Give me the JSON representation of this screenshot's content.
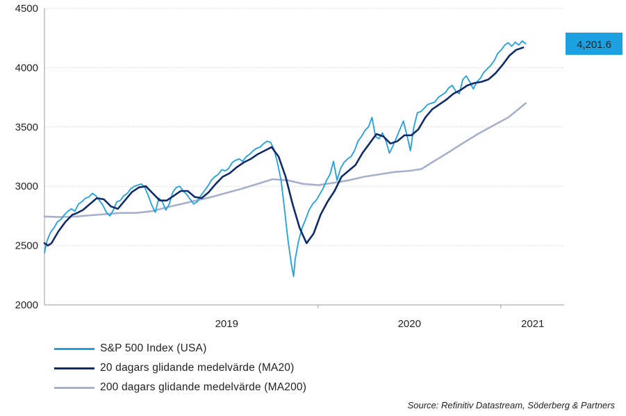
{
  "chart_data": {
    "type": "line",
    "title": "",
    "xlabel": "",
    "ylabel": "",
    "ylim": [
      2000,
      4500
    ],
    "yticks": [
      2000,
      2500,
      3000,
      3500,
      4000,
      4500
    ],
    "xlim": [
      "2018-07-01",
      "2021-05-07"
    ],
    "x_labels": [
      {
        "label": "2019",
        "at": "2019-07-01"
      },
      {
        "label": "2020",
        "at": "2020-07-01"
      },
      {
        "label": "2021",
        "at": "2021-03-05"
      }
    ],
    "x_tick_dates": [
      "2019-12-31",
      "2020-12-31"
    ],
    "grid": "horizontal-dotted",
    "legend_position": "bottom-left",
    "last_value_label": "4,201.6",
    "colors": {
      "sp500": "#1ba1e2",
      "ma20": "#0d2a6b",
      "ma200": "#a5b0cc",
      "badge": "#1ba1e2",
      "grid": "#c8c8c8",
      "axis": "#9a9a9a"
    },
    "series": [
      {
        "name": "S&P 500 Index (USA)",
        "key": "sp500",
        "points": [
          [
            "2018-07-01",
            2440
          ],
          [
            "2018-07-06",
            2540
          ],
          [
            "2018-07-13",
            2610
          ],
          [
            "2018-07-20",
            2650
          ],
          [
            "2018-07-27",
            2700
          ],
          [
            "2018-08-03",
            2720
          ],
          [
            "2018-08-10",
            2760
          ],
          [
            "2018-08-17",
            2790
          ],
          [
            "2018-08-24",
            2810
          ],
          [
            "2018-08-31",
            2790
          ],
          [
            "2018-09-07",
            2850
          ],
          [
            "2018-09-14",
            2870
          ],
          [
            "2018-09-21",
            2900
          ],
          [
            "2018-09-28",
            2910
          ],
          [
            "2018-10-05",
            2940
          ],
          [
            "2018-10-12",
            2920
          ],
          [
            "2018-10-19",
            2880
          ],
          [
            "2018-10-26",
            2840
          ],
          [
            "2018-11-02",
            2780
          ],
          [
            "2018-11-09",
            2750
          ],
          [
            "2018-11-16",
            2800
          ],
          [
            "2018-11-23",
            2870
          ],
          [
            "2018-11-30",
            2880
          ],
          [
            "2018-12-07",
            2920
          ],
          [
            "2018-12-14",
            2940
          ],
          [
            "2018-12-21",
            2980
          ],
          [
            "2018-12-28",
            3000
          ],
          [
            "2019-01-04",
            3010
          ],
          [
            "2019-01-11",
            3020
          ],
          [
            "2019-01-18",
            2990
          ],
          [
            "2019-01-25",
            2920
          ],
          [
            "2019-02-01",
            2840
          ],
          [
            "2019-02-08",
            2780
          ],
          [
            "2019-02-15",
            2900
          ],
          [
            "2019-02-22",
            2870
          ],
          [
            "2019-03-01",
            2800
          ],
          [
            "2019-03-08",
            2850
          ],
          [
            "2019-03-15",
            2950
          ],
          [
            "2019-03-22",
            2990
          ],
          [
            "2019-03-29",
            3000
          ],
          [
            "2019-04-05",
            2960
          ],
          [
            "2019-04-12",
            2930
          ],
          [
            "2019-04-19",
            2890
          ],
          [
            "2019-04-26",
            2850
          ],
          [
            "2019-05-03",
            2870
          ],
          [
            "2019-05-10",
            2920
          ],
          [
            "2019-05-17",
            2960
          ],
          [
            "2019-05-24",
            3000
          ],
          [
            "2019-05-31",
            3050
          ],
          [
            "2019-06-07",
            3080
          ],
          [
            "2019-06-14",
            3100
          ],
          [
            "2019-06-21",
            3140
          ],
          [
            "2019-06-28",
            3130
          ],
          [
            "2019-07-05",
            3150
          ],
          [
            "2019-07-12",
            3200
          ],
          [
            "2019-07-19",
            3220
          ],
          [
            "2019-07-26",
            3230
          ],
          [
            "2019-08-02",
            3210
          ],
          [
            "2019-08-09",
            3250
          ],
          [
            "2019-08-16",
            3270
          ],
          [
            "2019-08-23",
            3300
          ],
          [
            "2019-08-30",
            3320
          ],
          [
            "2019-09-06",
            3330
          ],
          [
            "2019-09-13",
            3360
          ],
          [
            "2019-09-20",
            3380
          ],
          [
            "2019-09-27",
            3370
          ],
          [
            "2019-10-04",
            3310
          ],
          [
            "2019-10-11",
            3190
          ],
          [
            "2019-10-18",
            3050
          ],
          [
            "2019-10-25",
            2800
          ],
          [
            "2019-11-01",
            2540
          ],
          [
            "2019-11-08",
            2330
          ],
          [
            "2019-11-12",
            2240
          ],
          [
            "2019-11-15",
            2380
          ],
          [
            "2019-11-22",
            2540
          ],
          [
            "2019-11-29",
            2650
          ],
          [
            "2019-12-06",
            2720
          ],
          [
            "2019-12-13",
            2800
          ],
          [
            "2019-12-20",
            2850
          ],
          [
            "2019-12-27",
            2880
          ],
          [
            "2020-01-03",
            2930
          ],
          [
            "2020-01-10",
            2980
          ],
          [
            "2020-01-17",
            3050
          ],
          [
            "2020-01-24",
            3100
          ],
          [
            "2020-01-31",
            3210
          ],
          [
            "2020-02-07",
            3050
          ],
          [
            "2020-02-14",
            3150
          ],
          [
            "2020-02-21",
            3200
          ],
          [
            "2020-02-28",
            3230
          ],
          [
            "2020-03-06",
            3250
          ],
          [
            "2020-03-13",
            3300
          ],
          [
            "2020-03-20",
            3380
          ],
          [
            "2020-03-27",
            3420
          ],
          [
            "2020-04-03",
            3470
          ],
          [
            "2020-04-10",
            3500
          ],
          [
            "2020-04-17",
            3580
          ],
          [
            "2020-04-24",
            3420
          ],
          [
            "2020-05-01",
            3400
          ],
          [
            "2020-05-08",
            3450
          ],
          [
            "2020-05-15",
            3380
          ],
          [
            "2020-05-22",
            3280
          ],
          [
            "2020-05-29",
            3340
          ],
          [
            "2020-06-05",
            3410
          ],
          [
            "2020-06-12",
            3480
          ],
          [
            "2020-06-19",
            3550
          ],
          [
            "2020-06-26",
            3430
          ],
          [
            "2020-07-03",
            3300
          ],
          [
            "2020-07-10",
            3500
          ],
          [
            "2020-07-17",
            3620
          ],
          [
            "2020-07-24",
            3630
          ],
          [
            "2020-07-31",
            3660
          ],
          [
            "2020-08-07",
            3690
          ],
          [
            "2020-08-14",
            3700
          ],
          [
            "2020-08-21",
            3710
          ],
          [
            "2020-08-28",
            3750
          ],
          [
            "2020-09-04",
            3770
          ],
          [
            "2020-09-11",
            3790
          ],
          [
            "2020-09-18",
            3830
          ],
          [
            "2020-09-25",
            3850
          ],
          [
            "2020-10-02",
            3800
          ],
          [
            "2020-10-09",
            3780
          ],
          [
            "2020-10-16",
            3900
          ],
          [
            "2020-10-23",
            3930
          ],
          [
            "2020-10-30",
            3880
          ],
          [
            "2020-11-06",
            3820
          ],
          [
            "2020-11-13",
            3880
          ],
          [
            "2020-11-20",
            3910
          ],
          [
            "2020-11-27",
            3960
          ],
          [
            "2020-12-04",
            3990
          ],
          [
            "2020-12-11",
            4020
          ],
          [
            "2020-12-18",
            4060
          ],
          [
            "2020-12-25",
            4120
          ],
          [
            "2021-01-01",
            4150
          ],
          [
            "2021-01-08",
            4190
          ],
          [
            "2021-01-15",
            4210
          ],
          [
            "2021-01-22",
            4180
          ],
          [
            "2021-01-29",
            4215
          ],
          [
            "2021-02-05",
            4190
          ],
          [
            "2021-02-12",
            4225
          ],
          [
            "2021-02-19",
            4201.6
          ]
        ]
      },
      {
        "name": "20 dagars glidande medelvärde (MA20)",
        "key": "ma20",
        "points": [
          [
            "2018-07-01",
            2520
          ],
          [
            "2018-07-08",
            2500
          ],
          [
            "2018-07-15",
            2520
          ],
          [
            "2018-07-22",
            2570
          ],
          [
            "2018-07-29",
            2620
          ],
          [
            "2018-08-05",
            2660
          ],
          [
            "2018-08-12",
            2700
          ],
          [
            "2018-08-19",
            2730
          ],
          [
            "2018-08-26",
            2760
          ],
          [
            "2018-09-02",
            2770
          ],
          [
            "2018-09-16",
            2800
          ],
          [
            "2018-09-30",
            2850
          ],
          [
            "2018-10-14",
            2900
          ],
          [
            "2018-10-28",
            2890
          ],
          [
            "2018-11-11",
            2830
          ],
          [
            "2018-11-25",
            2810
          ],
          [
            "2018-12-09",
            2880
          ],
          [
            "2018-12-23",
            2950
          ],
          [
            "2019-01-06",
            2990
          ],
          [
            "2019-01-20",
            3000
          ],
          [
            "2019-02-03",
            2940
          ],
          [
            "2019-02-17",
            2880
          ],
          [
            "2019-03-03",
            2880
          ],
          [
            "2019-03-17",
            2920
          ],
          [
            "2019-03-31",
            2960
          ],
          [
            "2019-04-14",
            2960
          ],
          [
            "2019-04-28",
            2910
          ],
          [
            "2019-05-12",
            2900
          ],
          [
            "2019-05-26",
            2950
          ],
          [
            "2019-06-09",
            3020
          ],
          [
            "2019-06-23",
            3080
          ],
          [
            "2019-07-07",
            3110
          ],
          [
            "2019-07-21",
            3160
          ],
          [
            "2019-08-04",
            3200
          ],
          [
            "2019-08-18",
            3230
          ],
          [
            "2019-09-01",
            3270
          ],
          [
            "2019-09-15",
            3300
          ],
          [
            "2019-09-29",
            3330
          ],
          [
            "2019-10-13",
            3250
          ],
          [
            "2019-10-27",
            3080
          ],
          [
            "2019-11-10",
            2850
          ],
          [
            "2019-11-24",
            2650
          ],
          [
            "2019-12-08",
            2520
          ],
          [
            "2019-12-22",
            2600
          ],
          [
            "2020-01-05",
            2760
          ],
          [
            "2020-01-19",
            2870
          ],
          [
            "2020-02-02",
            2960
          ],
          [
            "2020-02-16",
            3080
          ],
          [
            "2020-03-01",
            3130
          ],
          [
            "2020-03-15",
            3180
          ],
          [
            "2020-03-29",
            3280
          ],
          [
            "2020-04-12",
            3360
          ],
          [
            "2020-04-26",
            3440
          ],
          [
            "2020-05-10",
            3420
          ],
          [
            "2020-05-24",
            3360
          ],
          [
            "2020-06-07",
            3380
          ],
          [
            "2020-06-21",
            3430
          ],
          [
            "2020-07-05",
            3430
          ],
          [
            "2020-07-19",
            3480
          ],
          [
            "2020-08-02",
            3580
          ],
          [
            "2020-08-16",
            3650
          ],
          [
            "2020-08-30",
            3690
          ],
          [
            "2020-09-13",
            3730
          ],
          [
            "2020-09-27",
            3780
          ],
          [
            "2020-10-11",
            3810
          ],
          [
            "2020-10-25",
            3850
          ],
          [
            "2020-11-08",
            3870
          ],
          [
            "2020-11-22",
            3880
          ],
          [
            "2020-12-06",
            3900
          ],
          [
            "2020-12-20",
            3950
          ],
          [
            "2021-01-03",
            4020
          ],
          [
            "2021-01-17",
            4100
          ],
          [
            "2021-01-31",
            4150
          ],
          [
            "2021-02-14",
            4170
          ]
        ]
      },
      {
        "name": "200 dagars glidande medelvärde (MA200)",
        "key": "ma200",
        "points": [
          [
            "2018-07-01",
            2745
          ],
          [
            "2018-08-01",
            2740
          ],
          [
            "2018-09-01",
            2745
          ],
          [
            "2018-10-01",
            2755
          ],
          [
            "2018-11-01",
            2765
          ],
          [
            "2018-12-01",
            2775
          ],
          [
            "2019-01-01",
            2775
          ],
          [
            "2019-02-01",
            2790
          ],
          [
            "2019-03-01",
            2820
          ],
          [
            "2019-04-01",
            2850
          ],
          [
            "2019-05-01",
            2880
          ],
          [
            "2019-06-01",
            2910
          ],
          [
            "2019-07-01",
            2945
          ],
          [
            "2019-08-01",
            2980
          ],
          [
            "2019-09-01",
            3020
          ],
          [
            "2019-10-01",
            3060
          ],
          [
            "2019-11-01",
            3050
          ],
          [
            "2019-12-01",
            3020
          ],
          [
            "2020-01-01",
            3010
          ],
          [
            "2020-02-01",
            3030
          ],
          [
            "2020-03-01",
            3050
          ],
          [
            "2020-04-01",
            3080
          ],
          [
            "2020-05-01",
            3100
          ],
          [
            "2020-06-01",
            3120
          ],
          [
            "2020-07-01",
            3130
          ],
          [
            "2020-07-25",
            3145
          ],
          [
            "2020-08-15",
            3200
          ],
          [
            "2020-09-15",
            3280
          ],
          [
            "2020-10-15",
            3360
          ],
          [
            "2020-11-15",
            3440
          ],
          [
            "2020-12-15",
            3510
          ],
          [
            "2021-01-15",
            3580
          ],
          [
            "2021-02-19",
            3700
          ]
        ]
      }
    ]
  },
  "source_text": "Source: Refinitiv Datastream, Söderberg & Partners"
}
